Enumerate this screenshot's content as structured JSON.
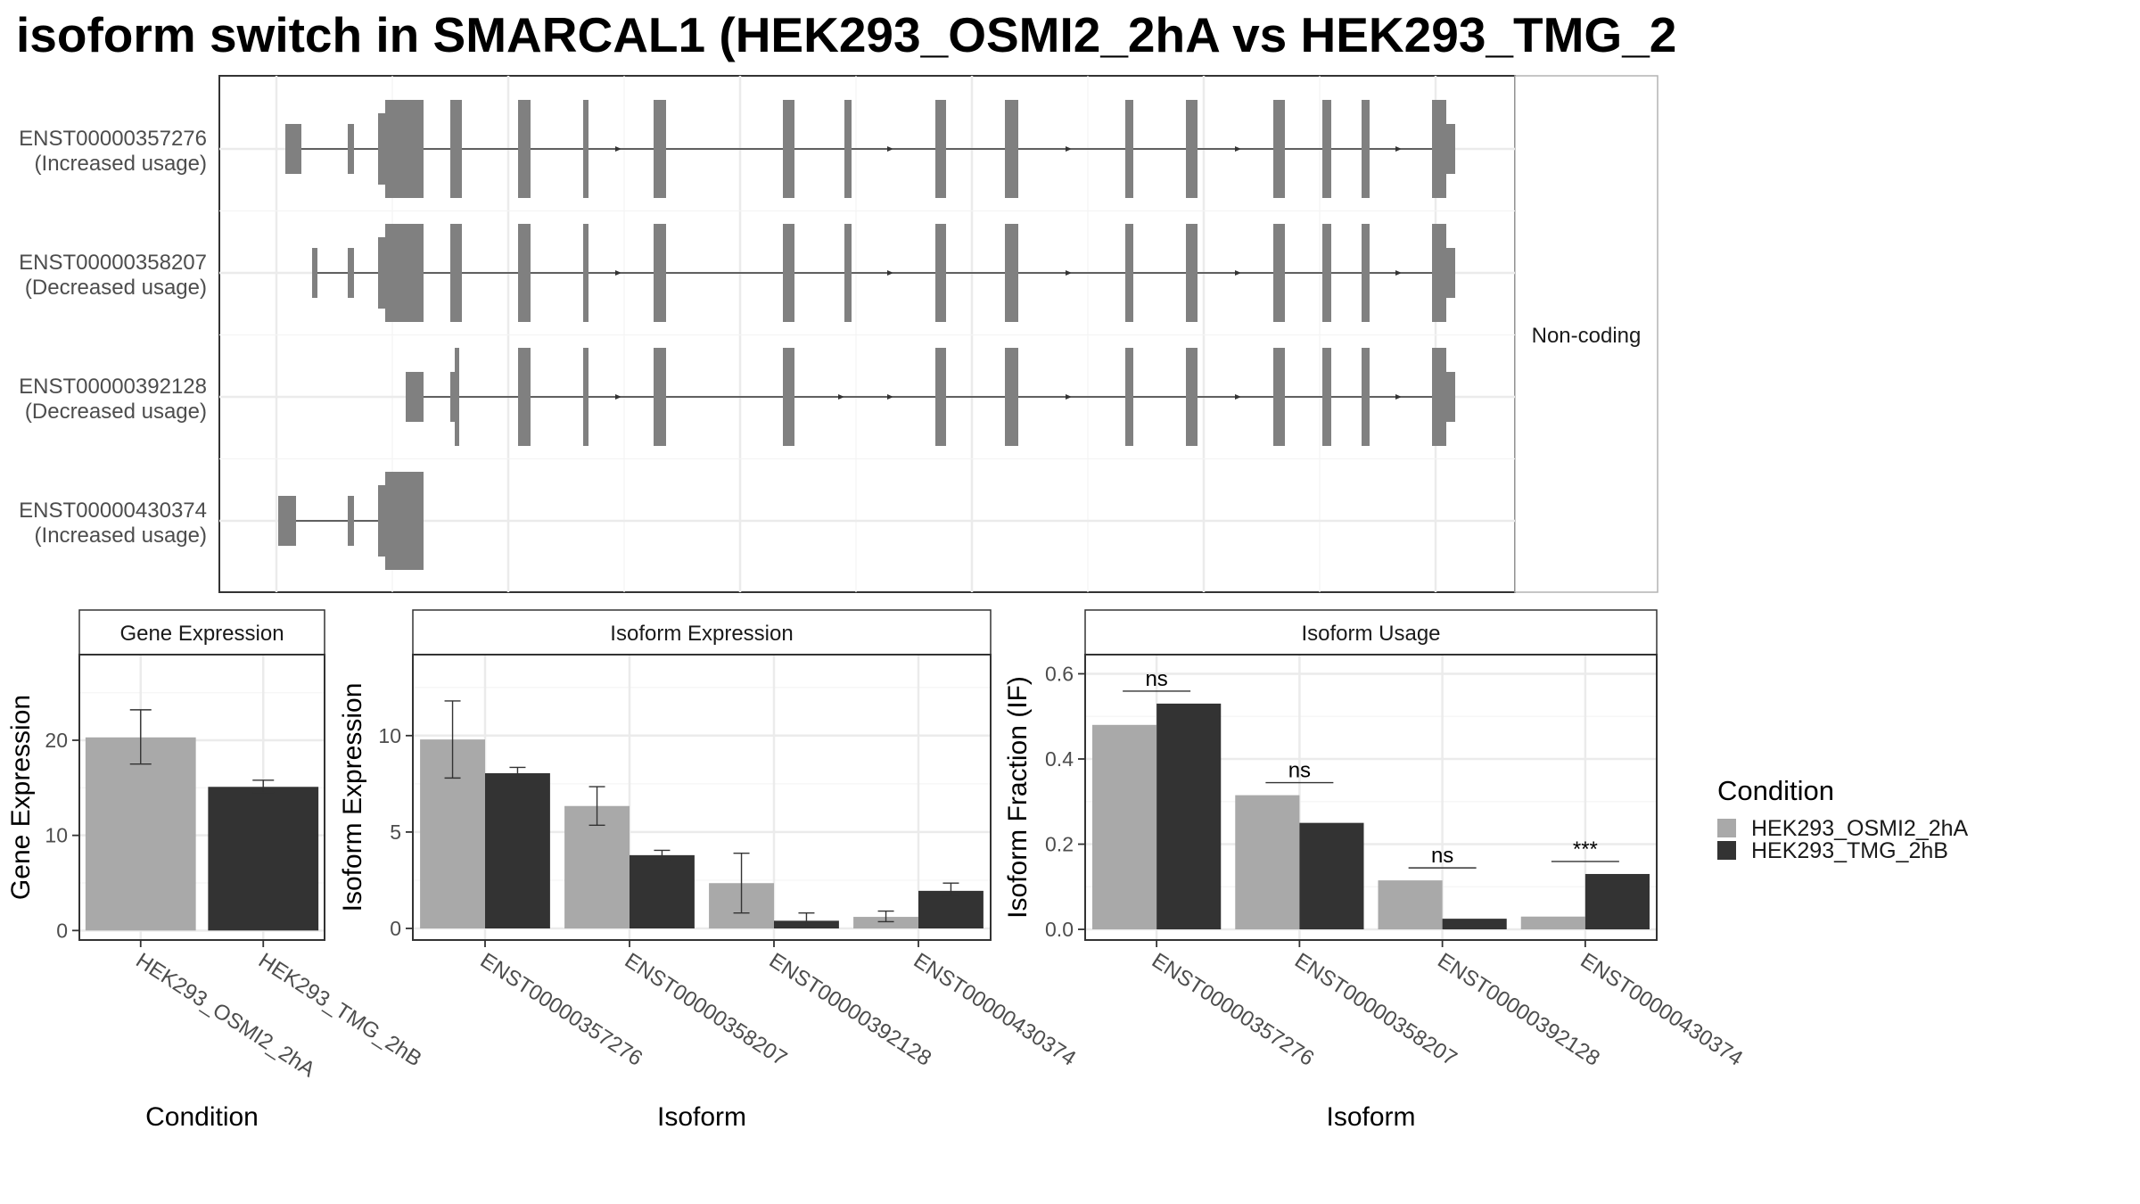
{
  "title": "isoform switch in SMARCAL1 (HEK293_OSMI2_2hA vs HEK293_TMG_2",
  "colors": {
    "cond_a": "#a9a9a9",
    "cond_b": "#333333",
    "exon": "#808080",
    "grid": "#ebebeb",
    "panel_border": "#333333"
  },
  "chart_data": [
    {
      "type": "gene-structure",
      "strip_label": "Non-coding",
      "isoforms": [
        {
          "id": "ENST00000357276",
          "note": "(Increased usage)"
        },
        {
          "id": "ENST00000358207",
          "note": "(Decreased usage)"
        },
        {
          "id": "ENST00000392128",
          "note": "(Decreased usage)"
        },
        {
          "id": "ENST00000430374",
          "note": "(Increased usage)"
        }
      ]
    },
    {
      "type": "bar",
      "strip": "Gene Expression",
      "xlabel": "Condition",
      "ylabel": "Gene Expression",
      "categories": [
        "HEK293_OSMI2_2hA",
        "HEK293_TMG_2hB"
      ],
      "values": [
        20.3,
        15.1
      ],
      "err_low": [
        17.5,
        14.5
      ],
      "err_high": [
        23.2,
        15.8
      ],
      "ylim": [
        -1,
        29
      ],
      "yticks": [
        0,
        10,
        20
      ]
    },
    {
      "type": "bar",
      "strip": "Isoform Expression",
      "xlabel": "Isoform",
      "ylabel": "Isoform Expression",
      "categories": [
        "ENST00000357276",
        "ENST00000358207",
        "ENST00000392128",
        "ENST00000430374"
      ],
      "series": [
        {
          "name": "HEK293_OSMI2_2hA",
          "values": [
            9.8,
            6.35,
            2.35,
            0.6
          ],
          "err_low": [
            7.8,
            5.35,
            0.8,
            0.35
          ],
          "err_high": [
            11.8,
            7.35,
            3.9,
            0.9
          ]
        },
        {
          "name": "HEK293_TMG_2hB",
          "values": [
            8.05,
            3.8,
            0.4,
            1.95
          ],
          "err_low": [
            7.8,
            3.55,
            0.05,
            1.65
          ],
          "err_high": [
            8.35,
            4.05,
            0.8,
            2.35
          ]
        }
      ],
      "ylim": [
        -0.6,
        14.2
      ],
      "yticks": [
        0,
        5,
        10
      ]
    },
    {
      "type": "bar",
      "strip": "Isoform Usage",
      "xlabel": "Isoform",
      "ylabel": "Isoform Fraction (IF)",
      "categories": [
        "ENST00000357276",
        "ENST00000358207",
        "ENST00000392128",
        "ENST00000430374"
      ],
      "series": [
        {
          "name": "HEK293_OSMI2_2hA",
          "values": [
            0.48,
            0.315,
            0.115,
            0.03
          ]
        },
        {
          "name": "HEK293_TMG_2hB",
          "values": [
            0.53,
            0.25,
            0.025,
            0.13
          ]
        }
      ],
      "significance": [
        "ns",
        "ns",
        "ns",
        "***"
      ],
      "ylim": [
        -0.025,
        0.645
      ],
      "yticks": [
        0.0,
        0.2,
        0.4,
        0.6
      ]
    }
  ],
  "legend": {
    "title": "Condition",
    "entries": [
      "HEK293_OSMI2_2hA",
      "HEK293_TMG_2hB"
    ]
  }
}
